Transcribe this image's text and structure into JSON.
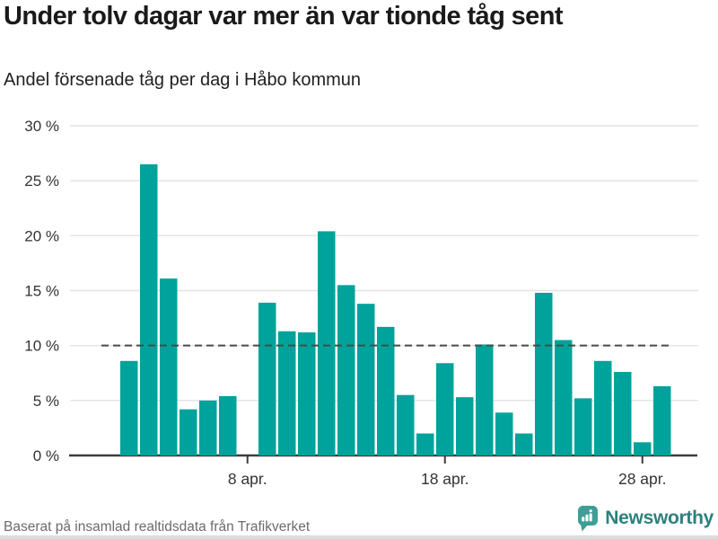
{
  "header": {
    "title": "Under tolv dagar var mer än var tionde tåg sent",
    "subtitle": "Andel försenade tåg per dag i Håbo kommun"
  },
  "footer": {
    "source": "Baserat på insamlad realtidsdata från Trafikverket",
    "brand": "Newsworthy"
  },
  "colors": {
    "bar": "#00a39b",
    "grid": "#e3e3e3",
    "axis": "#3d3d3d",
    "dashed": "#4a4a4a",
    "tick_label": "#333333",
    "brand_icon": "#3f9e97",
    "brand_text": "#2d817e"
  },
  "chart_data": {
    "type": "bar",
    "title": "Under tolv dagar var mer än var tionde tåg sent",
    "subtitle": "Andel försenade tåg per dag i Håbo kommun",
    "xlabel": "",
    "ylabel": "",
    "ylim": [
      0,
      30
    ],
    "grid": true,
    "reference_line": 10,
    "categories": [
      "1 apr.",
      "2 apr.",
      "3 apr.",
      "4 apr.",
      "5 apr.",
      "6 apr.",
      "7 apr.",
      "8 apr.",
      "9 apr.",
      "10 apr.",
      "11 apr.",
      "12 apr.",
      "13 apr.",
      "14 apr.",
      "15 apr.",
      "16 apr.",
      "17 apr.",
      "18 apr.",
      "19 apr.",
      "20 apr.",
      "21 apr.",
      "22 apr.",
      "23 apr.",
      "24 apr.",
      "25 apr.",
      "26 apr.",
      "27 apr.",
      "28 apr.",
      "29 apr."
    ],
    "values": [
      null,
      8.6,
      26.5,
      16.1,
      4.2,
      5.0,
      5.4,
      null,
      13.9,
      11.3,
      11.2,
      20.4,
      15.5,
      13.8,
      11.7,
      5.5,
      2.0,
      8.4,
      5.3,
      10.1,
      3.9,
      2.0,
      14.8,
      10.5,
      5.2,
      8.6,
      7.6,
      1.2,
      6.3
    ],
    "yticks": [
      {
        "value": 0,
        "label": "0 %"
      },
      {
        "value": 5,
        "label": "5 %"
      },
      {
        "value": 10,
        "label": "10 %"
      },
      {
        "value": 15,
        "label": "15 %"
      },
      {
        "value": 20,
        "label": "20 %"
      },
      {
        "value": 25,
        "label": "25 %"
      },
      {
        "value": 30,
        "label": "30 %"
      }
    ],
    "xticks": [
      "8 apr.",
      "18 apr.",
      "28 apr."
    ],
    "legend": null
  }
}
